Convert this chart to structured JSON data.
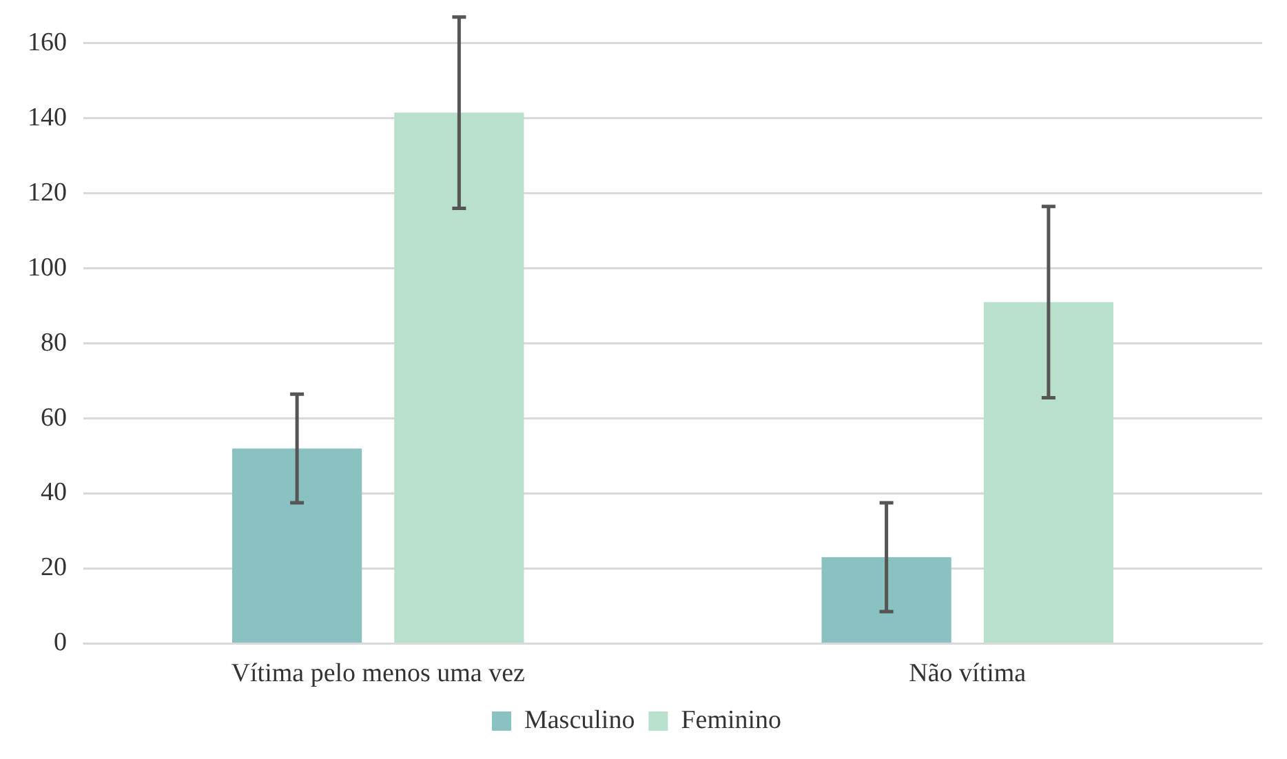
{
  "chart_data": {
    "type": "bar",
    "categories": [
      "Vítima pelo menos uma vez",
      "Não vítima"
    ],
    "series": [
      {
        "name": "Masculino",
        "color": "#8ac1c1",
        "values": [
          52,
          23
        ],
        "errors": [
          14.5,
          14.5
        ]
      },
      {
        "name": "Feminino",
        "color": "#b9e0cc",
        "values": [
          141.5,
          91
        ],
        "errors": [
          25.5,
          25.5
        ]
      }
    ],
    "ylim": [
      0,
      160
    ],
    "yticks": [
      0,
      20,
      40,
      60,
      80,
      100,
      120,
      140,
      160
    ],
    "grid": "y",
    "legend": "bottom"
  }
}
